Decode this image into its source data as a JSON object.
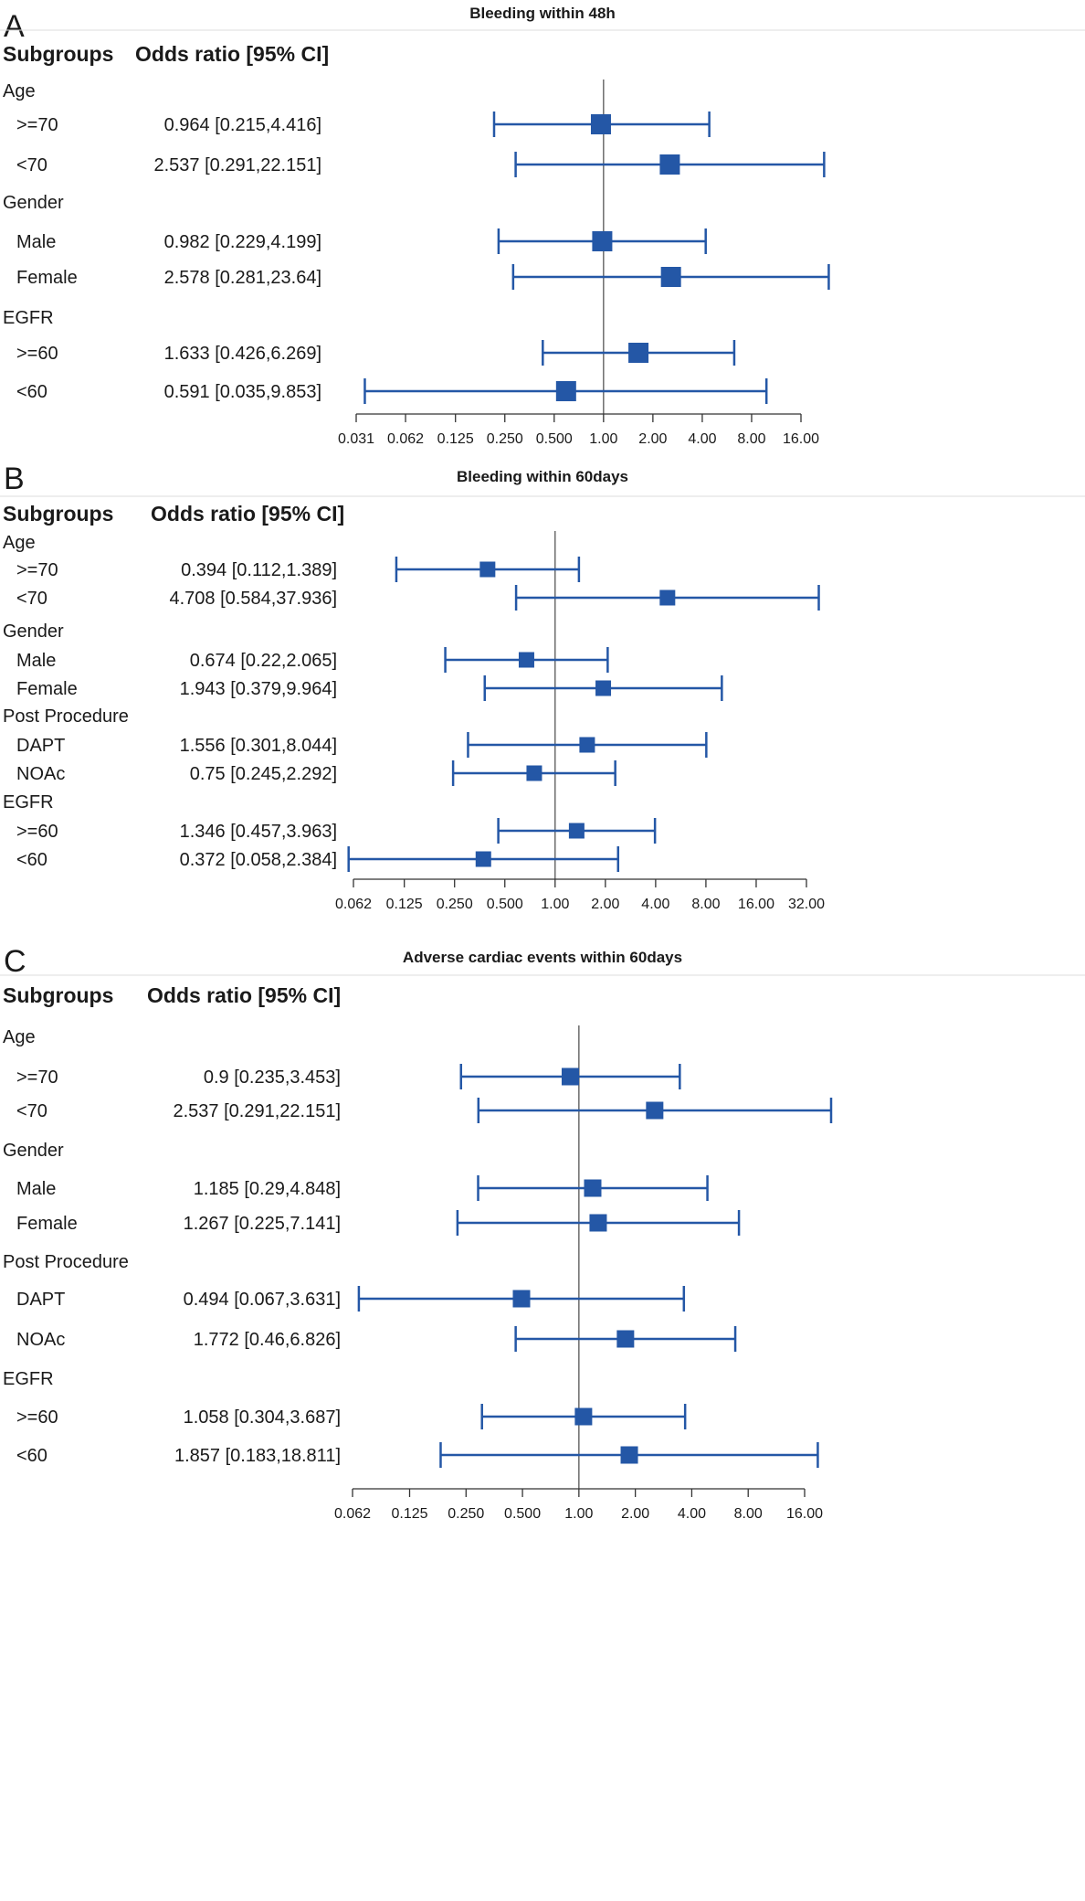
{
  "chart_data": [
    {
      "type": "forest",
      "panel_label": "A",
      "title": "Bleeding within 48h",
      "headers": [
        "Subgroups",
        "Odds ratio [95% CI]"
      ],
      "x_scale": "log2",
      "xlim": [
        0.031,
        16
      ],
      "xticks": [
        "0.031",
        "0.062",
        "0.125",
        "0.250",
        "0.500",
        "1.00",
        "2.00",
        "4.00",
        "8.00",
        "16.00"
      ],
      "reference_line": 1,
      "rows": [
        {
          "type": "group",
          "label": "Age"
        },
        {
          "type": "item",
          "label": ">=70",
          "text": "0.964 [0.215,4.416]",
          "or": 0.964,
          "lo": 0.215,
          "hi": 4.416
        },
        {
          "type": "item",
          "label": "<70",
          "text": "2.537 [0.291,22.151]",
          "or": 2.537,
          "lo": 0.291,
          "hi": 22.151
        },
        {
          "type": "group",
          "label": "Gender"
        },
        {
          "type": "item",
          "label": "Male",
          "text": "0.982 [0.229,4.199]",
          "or": 0.982,
          "lo": 0.229,
          "hi": 4.199
        },
        {
          "type": "item",
          "label": "Female",
          "text": "2.578 [0.281,23.64]",
          "or": 2.578,
          "lo": 0.281,
          "hi": 23.64
        },
        {
          "type": "group",
          "label": "EGFR"
        },
        {
          "type": "item",
          "label": ">=60",
          "text": "1.633 [0.426,6.269]",
          "or": 1.633,
          "lo": 0.426,
          "hi": 6.269
        },
        {
          "type": "item",
          "label": "<60",
          "text": "0.591 [0.035,9.853]",
          "or": 0.591,
          "lo": 0.035,
          "hi": 9.853
        }
      ]
    },
    {
      "type": "forest",
      "panel_label": "B",
      "title": "Bleeding within 60days",
      "headers": [
        "Subgroups",
        "Odds ratio [95% CI]"
      ],
      "x_scale": "log2",
      "xlim": [
        0.062,
        32
      ],
      "xticks": [
        "0.062",
        "0.125",
        "0.250",
        "0.500",
        "1.00",
        "2.00",
        "4.00",
        "8.00",
        "16.00",
        "32.00"
      ],
      "reference_line": 1,
      "rows": [
        {
          "type": "group",
          "label": "Age"
        },
        {
          "type": "item",
          "label": ">=70",
          "text": "0.394 [0.112,1.389]",
          "or": 0.394,
          "lo": 0.112,
          "hi": 1.389
        },
        {
          "type": "item",
          "label": "<70",
          "text": "4.708 [0.584,37.936]",
          "or": 4.708,
          "lo": 0.584,
          "hi": 37.936
        },
        {
          "type": "group",
          "label": "Gender"
        },
        {
          "type": "item",
          "label": "Male",
          "text": "0.674 [0.22,2.065]",
          "or": 0.674,
          "lo": 0.22,
          "hi": 2.065
        },
        {
          "type": "item",
          "label": "Female",
          "text": "1.943 [0.379,9.964]",
          "or": 1.943,
          "lo": 0.379,
          "hi": 9.964
        },
        {
          "type": "group",
          "label": "Post Procedure"
        },
        {
          "type": "item",
          "label": "DAPT",
          "text": "1.556 [0.301,8.044]",
          "or": 1.556,
          "lo": 0.301,
          "hi": 8.044
        },
        {
          "type": "item",
          "label": "NOAc",
          "text": "0.75 [0.245,2.292]",
          "or": 0.75,
          "lo": 0.245,
          "hi": 2.292
        },
        {
          "type": "group",
          "label": "EGFR"
        },
        {
          "type": "item",
          "label": ">=60",
          "text": "1.346 [0.457,3.963]",
          "or": 1.346,
          "lo": 0.457,
          "hi": 3.963
        },
        {
          "type": "item",
          "label": "<60",
          "text": "0.372 [0.058,2.384]",
          "or": 0.372,
          "lo": 0.058,
          "hi": 2.384
        }
      ]
    },
    {
      "type": "forest",
      "panel_label": "C",
      "title": "Adverse cardiac events within 60days",
      "headers": [
        "Subgroups",
        "Odds ratio [95% CI]"
      ],
      "x_scale": "log2",
      "xlim": [
        0.062,
        16
      ],
      "xticks": [
        "0.062",
        "0.125",
        "0.250",
        "0.500",
        "1.00",
        "2.00",
        "4.00",
        "8.00",
        "16.00"
      ],
      "reference_line": 1,
      "rows": [
        {
          "type": "group",
          "label": "Age"
        },
        {
          "type": "item",
          "label": ">=70",
          "text": "0.9 [0.235,3.453]",
          "or": 0.9,
          "lo": 0.235,
          "hi": 3.453
        },
        {
          "type": "item",
          "label": "<70",
          "text": "2.537 [0.291,22.151]",
          "or": 2.537,
          "lo": 0.291,
          "hi": 22.151
        },
        {
          "type": "group",
          "label": "Gender"
        },
        {
          "type": "item",
          "label": "Male",
          "text": "1.185 [0.29,4.848]",
          "or": 1.185,
          "lo": 0.29,
          "hi": 4.848
        },
        {
          "type": "item",
          "label": "Female",
          "text": "1.267 [0.225,7.141]",
          "or": 1.267,
          "lo": 0.225,
          "hi": 7.141
        },
        {
          "type": "group",
          "label": "Post Procedure"
        },
        {
          "type": "item",
          "label": "DAPT",
          "text": "0.494 [0.067,3.631]",
          "or": 0.494,
          "lo": 0.067,
          "hi": 3.631
        },
        {
          "type": "item",
          "label": "NOAc",
          "text": "1.772 [0.46,6.826]",
          "or": 1.772,
          "lo": 0.46,
          "hi": 6.826
        },
        {
          "type": "group",
          "label": "EGFR"
        },
        {
          "type": "item",
          "label": ">=60",
          "text": "1.058 [0.304,3.687]",
          "or": 1.058,
          "lo": 0.304,
          "hi": 3.687
        },
        {
          "type": "item",
          "label": "<60",
          "text": "1.857 [0.183,18.811]",
          "or": 1.857,
          "lo": 0.183,
          "hi": 18.811
        }
      ]
    }
  ],
  "colors": {
    "marker": "#2457a6",
    "reference_line": "#555555",
    "axis": "#333333",
    "divider": "#dcdcdc"
  }
}
